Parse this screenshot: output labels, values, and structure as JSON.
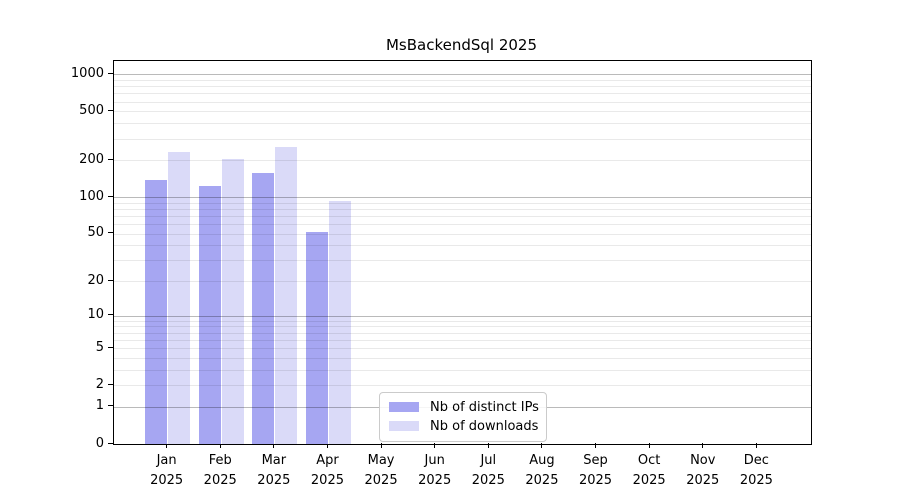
{
  "chart_data": {
    "type": "bar",
    "title": "MsBackendSql 2025",
    "yscale": "log10(value+1)",
    "ylim": [
      0,
      1000
    ],
    "yticks": [
      0,
      1,
      2,
      5,
      10,
      20,
      50,
      100,
      200,
      500,
      1000
    ],
    "grid": {
      "major_ticks": [
        1,
        10,
        100,
        1000
      ],
      "major_color": "rgba(0,0,0,0.27)",
      "minor_color": "rgba(0,0,0,0.085)"
    },
    "categories": [
      "Jan",
      "Feb",
      "Mar",
      "Apr",
      "May",
      "Jun",
      "Jul",
      "Aug",
      "Sep",
      "Oct",
      "Nov",
      "Dec"
    ],
    "category_year": "2025",
    "series": [
      {
        "name": "Nb of distinct IPs",
        "color": "#a6a6f2",
        "values": [
          137,
          122,
          158,
          52,
          null,
          null,
          null,
          null,
          null,
          null,
          null,
          null
        ]
      },
      {
        "name": "Nb of downloads",
        "color": "#dadaf8",
        "values": [
          233,
          204,
          257,
          92,
          null,
          null,
          null,
          null,
          null,
          null,
          null,
          null
        ]
      }
    ],
    "legend": {
      "position": "lower-center"
    }
  }
}
